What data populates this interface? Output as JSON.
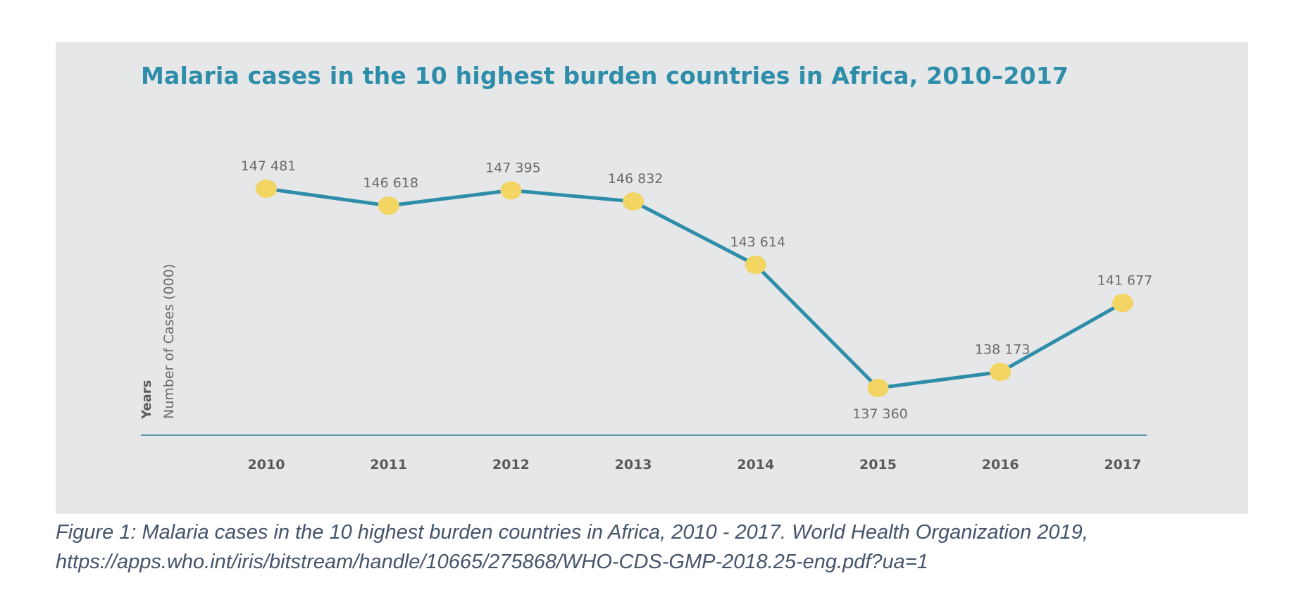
{
  "chart_data": {
    "type": "line",
    "title": "Malaria cases in the 10 highest burden countries in Africa, 2010–2017",
    "ylabel": "Number of Cases (000)",
    "xlabel": "Years",
    "categories": [
      "2010",
      "2011",
      "2012",
      "2013",
      "2014",
      "2015",
      "2016",
      "2017"
    ],
    "series": [
      {
        "values": [
          147481,
          146618,
          147395,
          146832,
          143614,
          137360,
          138173,
          141677
        ],
        "labels": [
          "147 481",
          "146 618",
          "147 395",
          "146 832",
          "143 614",
          "137 360",
          "138 173",
          "141 677"
        ]
      }
    ],
    "ylim": [
      133000,
      149500
    ],
    "grid": false,
    "legend": "none",
    "colors": {
      "line": "#2e8eaa",
      "marker": "#f2d562",
      "title": "#2e8eaa",
      "axis": "#5e9db0",
      "panel": "#e6e7e8",
      "tick_text": "#5a5a5a",
      "value_text": "#6a6a6a"
    }
  },
  "caption": {
    "line1": "Figure 1: Malaria cases in the 10 highest burden countries in Africa, 2010 - 2017. World Health Organization 2019,",
    "line2": "https://apps.who.int/iris/bitstream/handle/10665/275868/WHO-CDS-GMP-2018.25-eng.pdf?ua=1"
  }
}
